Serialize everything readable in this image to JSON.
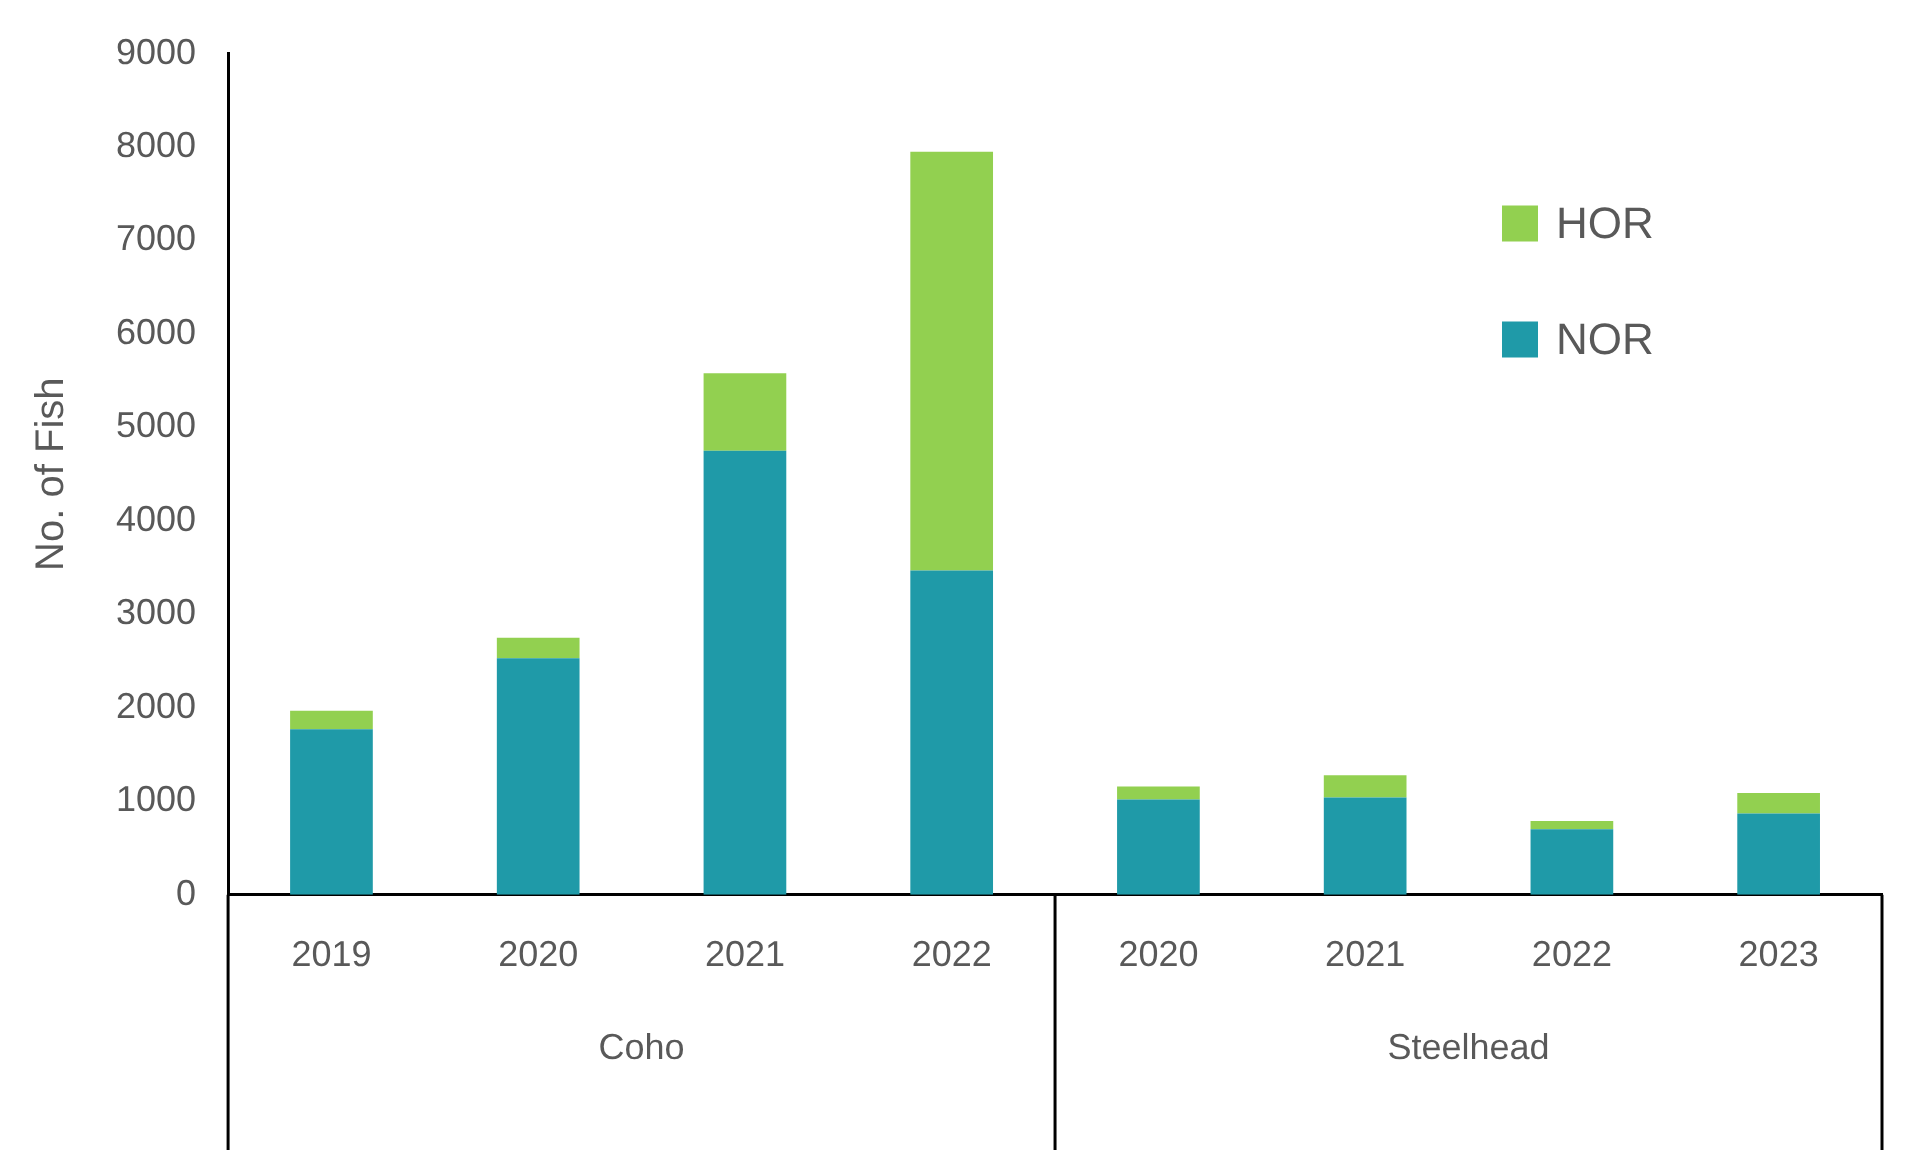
{
  "chart_data": {
    "type": "bar",
    "stacked": true,
    "ylabel": "No. of Fish",
    "categories": [
      "2019",
      "2020",
      "2021",
      "2022",
      "2020",
      "2021",
      "2022",
      "2023"
    ],
    "series": [
      {
        "name": "NOR",
        "color": "#1f9aa8",
        "values": [
          1770,
          2530,
          4750,
          3470,
          1020,
          1040,
          700,
          870
        ]
      },
      {
        "name": "HOR",
        "color": "#92d050",
        "values": [
          200,
          220,
          830,
          4480,
          140,
          240,
          90,
          220
        ]
      }
    ],
    "annotations": [
      "Coho",
      "Steelhead"
    ],
    "ylim": [
      0,
      9000
    ],
    "yticks": [
      0,
      1000,
      2000,
      3000,
      4000,
      5000,
      6000,
      7000,
      8000,
      9000
    ],
    "grid": false,
    "legend": "top right"
  }
}
